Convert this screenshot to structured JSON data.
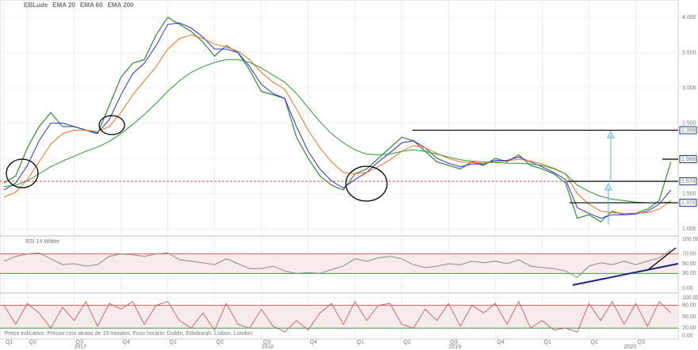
{
  "chart_data": [
    {
      "type": "line",
      "categories": [
        "Q1",
        null,
        "Q2",
        null,
        null,
        null,
        "Q3",
        null,
        null,
        null,
        "Q4",
        null,
        null,
        null,
        "Q1",
        null,
        null,
        null,
        "Q2",
        null,
        null,
        null,
        "Q3",
        null,
        null,
        null,
        "Q4",
        null,
        null,
        null,
        "Q1",
        null,
        null,
        null,
        "Q2",
        null,
        null,
        null,
        "Q3",
        null,
        null,
        null,
        "Q4",
        null,
        null,
        null,
        "Q1",
        null,
        null,
        null,
        "Q2",
        null,
        null,
        null,
        "Q3",
        null,
        null,
        null
      ],
      "year_labels": [
        null,
        null,
        null,
        null,
        null,
        null,
        "2017",
        null,
        null,
        null,
        null,
        null,
        null,
        null,
        null,
        null,
        null,
        null,
        null,
        null,
        null,
        null,
        "2018",
        null,
        null,
        null,
        null,
        null,
        null,
        null,
        null,
        null,
        null,
        null,
        null,
        null,
        null,
        null,
        "2019",
        null,
        null,
        null,
        null,
        null,
        null,
        null,
        null,
        null,
        null,
        null,
        null,
        null,
        null,
        "2020",
        null,
        null,
        null,
        null
      ],
      "series": [
        {
          "name": "EBLude",
          "color": "#3f8f3f",
          "values": [
            1.65,
            1.75,
            2.15,
            2.45,
            2.65,
            2.45,
            2.45,
            2.4,
            2.35,
            2.75,
            3.15,
            3.35,
            3.4,
            3.75,
            4.0,
            3.9,
            3.8,
            3.65,
            3.45,
            3.6,
            3.5,
            3.25,
            2.95,
            2.9,
            2.85,
            2.3,
            2.0,
            1.75,
            1.62,
            1.55,
            1.78,
            1.85,
            2.0,
            2.15,
            2.3,
            2.25,
            2.1,
            1.95,
            1.9,
            1.85,
            1.95,
            1.9,
            2.0,
            1.95,
            2.05,
            1.9,
            1.85,
            1.78,
            1.65,
            1.15,
            1.2,
            1.1,
            1.25,
            1.2,
            1.22,
            1.28,
            1.4,
            1.95
          ]
        },
        {
          "name": "EMA 20",
          "color": "#2b2bd6",
          "values": [
            1.55,
            1.65,
            1.9,
            2.25,
            2.5,
            2.5,
            2.45,
            2.4,
            2.36,
            2.55,
            2.9,
            3.2,
            3.35,
            3.6,
            3.9,
            3.92,
            3.85,
            3.72,
            3.55,
            3.55,
            3.5,
            3.3,
            3.05,
            2.92,
            2.85,
            2.45,
            2.1,
            1.85,
            1.68,
            1.58,
            1.7,
            1.8,
            1.95,
            2.08,
            2.22,
            2.25,
            2.15,
            2.0,
            1.93,
            1.88,
            1.92,
            1.92,
            1.97,
            1.97,
            2.02,
            1.95,
            1.88,
            1.8,
            1.7,
            1.3,
            1.22,
            1.15,
            1.2,
            1.2,
            1.21,
            1.25,
            1.35,
            1.55
          ]
        },
        {
          "name": "EMA 60",
          "color": "#f07020",
          "values": [
            1.45,
            1.52,
            1.7,
            1.95,
            2.2,
            2.35,
            2.4,
            2.4,
            2.38,
            2.45,
            2.65,
            2.9,
            3.1,
            3.3,
            3.55,
            3.7,
            3.75,
            3.7,
            3.62,
            3.58,
            3.52,
            3.4,
            3.22,
            3.08,
            2.98,
            2.7,
            2.4,
            2.15,
            1.95,
            1.8,
            1.78,
            1.8,
            1.88,
            1.98,
            2.1,
            2.18,
            2.15,
            2.07,
            2.0,
            1.95,
            1.94,
            1.93,
            1.95,
            1.96,
            1.99,
            1.96,
            1.92,
            1.86,
            1.78,
            1.5,
            1.35,
            1.25,
            1.23,
            1.22,
            1.22,
            1.23,
            1.28,
            1.4
          ]
        },
        {
          "name": "EMA 200",
          "color": "#2f9a2f",
          "values": [
            1.6,
            1.62,
            1.68,
            1.78,
            1.88,
            1.96,
            2.03,
            2.1,
            2.16,
            2.24,
            2.35,
            2.48,
            2.62,
            2.78,
            2.95,
            3.1,
            3.22,
            3.3,
            3.36,
            3.4,
            3.4,
            3.36,
            3.28,
            3.18,
            3.08,
            2.92,
            2.72,
            2.52,
            2.35,
            2.22,
            2.12,
            2.06,
            2.05,
            2.06,
            2.1,
            2.12,
            2.1,
            2.06,
            2.02,
            1.98,
            1.96,
            1.95,
            1.94,
            1.93,
            1.93,
            1.92,
            1.9,
            1.85,
            1.78,
            1.62,
            1.53,
            1.46,
            1.42,
            1.4,
            1.38,
            1.37,
            1.37,
            1.38
          ]
        }
      ],
      "ylim": [
        0.91,
        4.19
      ],
      "yticks": [
        {
          "value": 1,
          "label": "1.000"
        },
        {
          "value": 1.5,
          "label": "1.500"
        },
        {
          "value": 2,
          "label": "2.000"
        },
        {
          "value": 2.5,
          "label": "2.500"
        },
        {
          "value": 3,
          "label": "3.000"
        },
        {
          "value": 3.5,
          "label": "3.500"
        },
        {
          "value": 4,
          "label": "4.000"
        }
      ],
      "levels": [
        {
          "value": 2.399,
          "label": "2.399"
        },
        {
          "value": 1.988,
          "label": "1.988"
        },
        {
          "value": 1.674,
          "label": "1.674"
        },
        {
          "value": 1.37,
          "label": "1.370"
        }
      ],
      "footer": "Preço indicativo. Preços com atraso de 15 minutos. Fuso horário: Dublin, Edinburgh, Lisbon, London"
    },
    {
      "type": "line",
      "title": "RSI 14 Wilder",
      "series": [
        {
          "color": "#8a8a8a",
          "values": [
            55,
            65,
            70,
            72,
            60,
            48,
            50,
            45,
            48,
            65,
            70,
            68,
            65,
            70,
            72,
            58,
            55,
            52,
            48,
            60,
            50,
            40,
            40,
            45,
            35,
            30,
            32,
            30,
            38,
            45,
            60,
            55,
            62,
            65,
            60,
            48,
            42,
            45,
            50,
            48,
            55,
            52,
            55,
            50,
            58,
            45,
            42,
            40,
            35,
            22,
            45,
            52,
            48,
            55,
            48,
            55,
            62,
            78
          ]
        }
      ],
      "ylim": [
        0,
        100
      ],
      "band": [
        30,
        70
      ],
      "yticks": [
        {
          "value": 0,
          "label": "0.00"
        },
        {
          "value": 30,
          "label": "30.00"
        },
        {
          "value": 50,
          "label": "50.00"
        },
        {
          "value": 70,
          "label": "70.00"
        },
        {
          "value": 100,
          "label": "100.00"
        }
      ]
    },
    {
      "type": "line",
      "series": [
        {
          "color": "#c86a6a",
          "values": [
            80,
            30,
            85,
            60,
            20,
            75,
            40,
            90,
            25,
            85,
            70,
            90,
            30,
            80,
            90,
            40,
            20,
            60,
            15,
            85,
            30,
            20,
            70,
            25,
            10,
            40,
            15,
            60,
            85,
            30,
            90,
            40,
            80,
            85,
            30,
            20,
            70,
            40,
            85,
            25,
            80,
            60,
            85,
            30,
            90,
            20,
            40,
            15,
            20,
            10,
            85,
            40,
            90,
            30,
            85,
            25,
            90,
            60
          ]
        }
      ],
      "ylim": [
        0,
        100
      ],
      "band": [
        20,
        80
      ],
      "yticks": [
        {
          "value": 0,
          "label": "0.00"
        },
        {
          "value": 20,
          "label": "20.00"
        },
        {
          "value": 50,
          "label": "50.00"
        },
        {
          "value": 80,
          "label": "80.00"
        },
        {
          "value": 100,
          "label": "100.00"
        }
      ]
    }
  ]
}
